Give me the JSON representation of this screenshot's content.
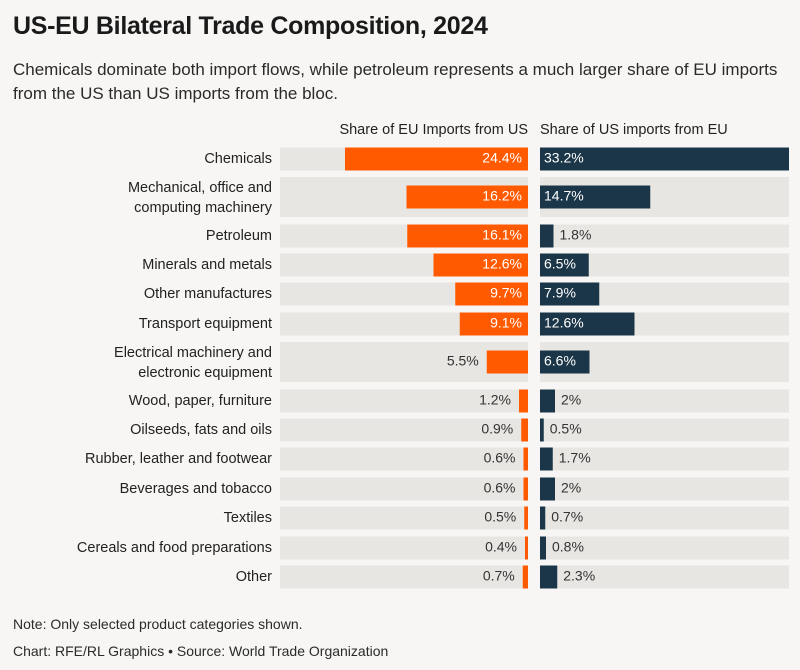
{
  "title": "US-EU Bilateral Trade Composition, 2024",
  "subtitle": "Chemicals dominate both import flows, while petroleum represents a much larger share of EU imports from the US than US imports from the bloc.",
  "note": "Note: Only selected product categories shown.",
  "credit": "Chart: RFE/RL Graphics • Source: World Trade Organization",
  "colors": {
    "eu_imports": "#ff5a00",
    "us_imports": "#1b3648",
    "track": "#e8e6e3",
    "background": "#f7f6f4"
  },
  "chart_data": {
    "type": "bar",
    "orientation": "horizontal",
    "layout": "butterfly",
    "categories": [
      "Chemicals",
      "Mechanical, office and computing machinery",
      "Petroleum",
      "Minerals and metals",
      "Other manufactures",
      "Transport equipment",
      "Electrical machinery and electronic equipment",
      "Wood, paper, furniture",
      "Oilseeds, fats and oils",
      "Rubber, leather and footwear",
      "Beverages and tobacco",
      "Textiles",
      "Cereals and food preparations",
      "Other"
    ],
    "series": [
      {
        "name": "Share of EU Imports from US",
        "values": [
          24.4,
          16.2,
          16.1,
          12.6,
          9.7,
          9.1,
          5.5,
          1.2,
          0.9,
          0.6,
          0.6,
          0.5,
          0.4,
          0.7
        ],
        "labels": [
          "24.4%",
          "16.2%",
          "16.1%",
          "12.6%",
          "9.7%",
          "9.1%",
          "5.5%",
          "1.2%",
          "0.9%",
          "0.6%",
          "0.6%",
          "0.5%",
          "0.4%",
          "0.7%"
        ]
      },
      {
        "name": "Share of US imports from EU",
        "values": [
          33.2,
          14.7,
          1.8,
          6.5,
          7.9,
          12.6,
          6.6,
          2,
          0.5,
          1.7,
          2,
          0.7,
          0.8,
          2.3
        ],
        "labels": [
          "33.2%",
          "14.7%",
          "1.8%",
          "6.5%",
          "7.9%",
          "12.6%",
          "6.6%",
          "2%",
          "0.5%",
          "1.7%",
          "2%",
          "0.7%",
          "0.8%",
          "2.3%"
        ]
      }
    ],
    "xlim": [
      0,
      33.2
    ],
    "grid": false,
    "legend": "column-headers"
  }
}
